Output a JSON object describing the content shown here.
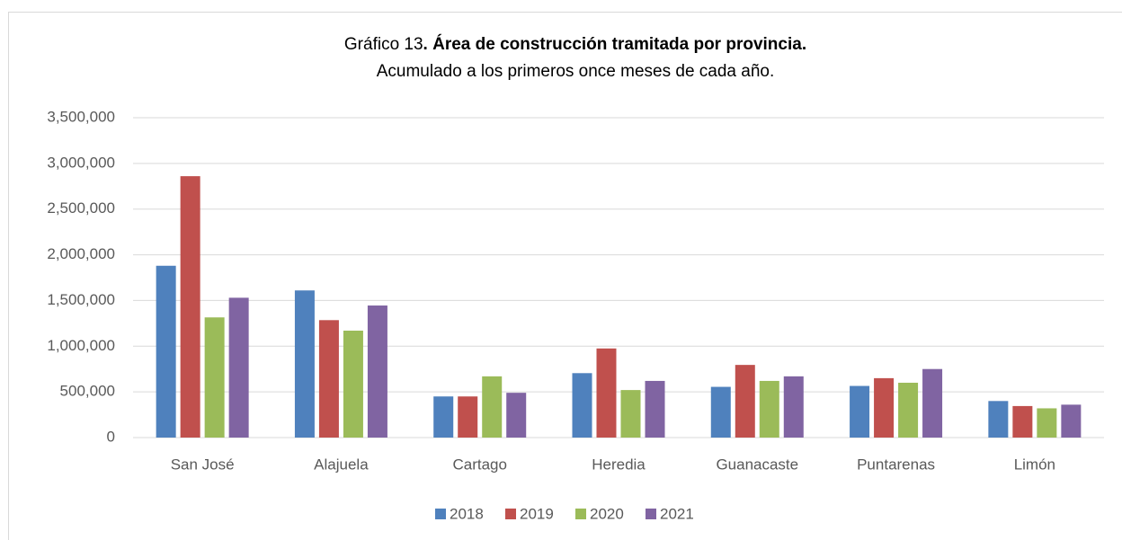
{
  "chart_data": {
    "type": "bar",
    "title_prefix": "Gráfico 13",
    "title": ". Área de construcción tramitada por provincia.",
    "subtitle": "Acumulado a los primeros once meses de cada año.",
    "categories": [
      "San José",
      "Alajuela",
      "Cartago",
      "Heredia",
      "Guanacaste",
      "Puntarenas",
      "Limón"
    ],
    "series": [
      {
        "name": "2018",
        "color": "#4f81bd",
        "values": [
          1880000,
          1610000,
          450000,
          705000,
          555000,
          565000,
          400000
        ]
      },
      {
        "name": "2019",
        "color": "#c0504d",
        "values": [
          2860000,
          1285000,
          450000,
          975000,
          795000,
          650000,
          345000
        ]
      },
      {
        "name": "2020",
        "color": "#9bbb59",
        "values": [
          1315000,
          1170000,
          670000,
          520000,
          620000,
          600000,
          320000
        ]
      },
      {
        "name": "2021",
        "color": "#8064a2",
        "values": [
          1530000,
          1445000,
          490000,
          620000,
          670000,
          750000,
          360000
        ]
      }
    ],
    "ylim": [
      0,
      3500000
    ],
    "yticks": [
      0,
      {
        "value": 500000,
        "label": "500,000"
      },
      {
        "value": 1000000,
        "label": "1,000,000"
      },
      {
        "value": 1500000,
        "label": "1,500,000"
      },
      {
        "value": 2000000,
        "label": "2,000,000"
      },
      {
        "value": 2500000,
        "label": "2,500,000"
      },
      {
        "value": 3000000,
        "label": "3,000,000"
      },
      {
        "value": 3500000,
        "label": "3,500,000"
      }
    ],
    "grid": true,
    "legend": "bottom"
  }
}
